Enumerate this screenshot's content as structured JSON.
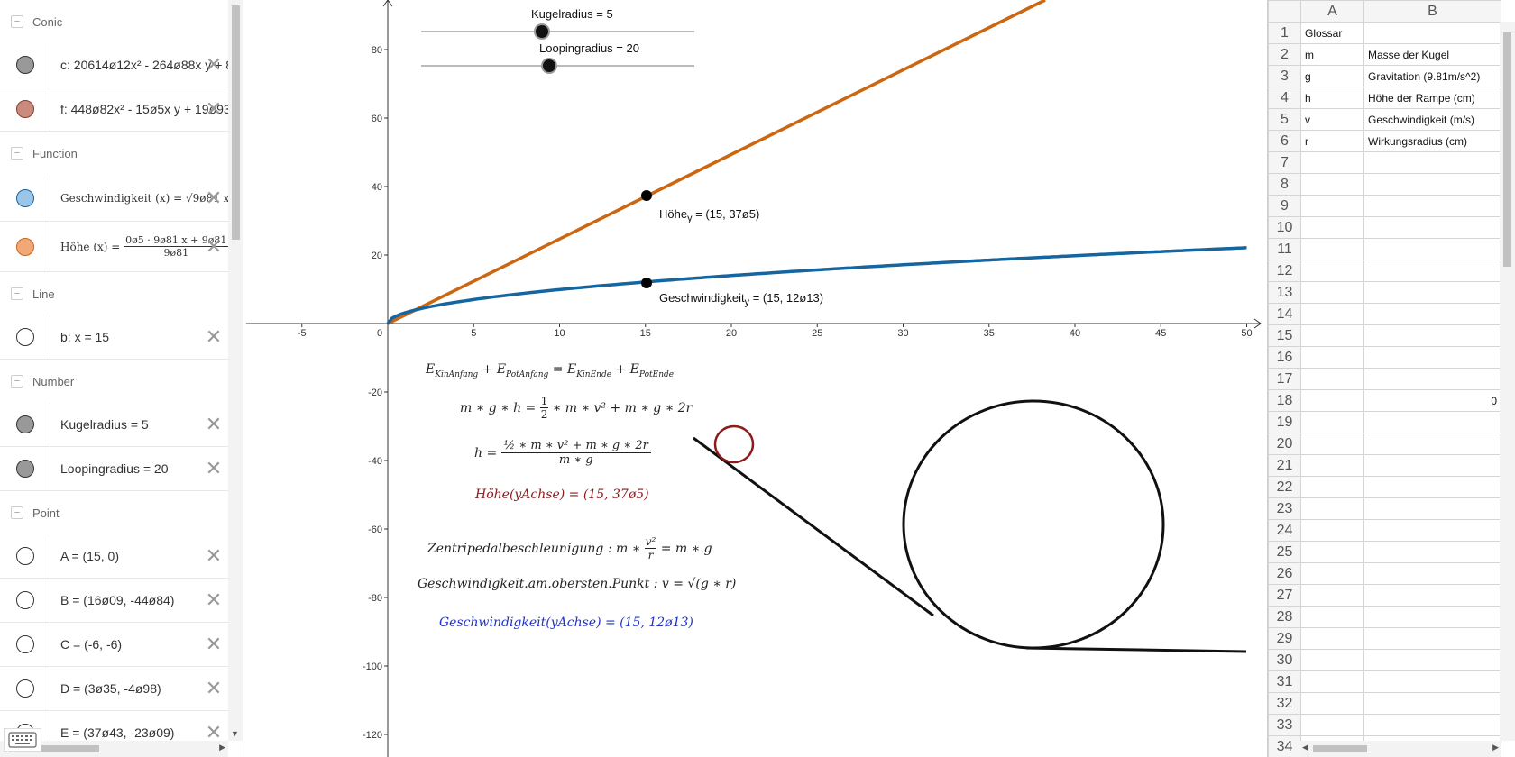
{
  "algebra": {
    "groups": [
      {
        "header": "Conic",
        "items": [
          {
            "expr": "c: 20614ø12x² - 264ø88x y + 8",
            "color": "#999999"
          },
          {
            "expr": "f: 448ø82x² - 15ø5x y + 19ø93",
            "color": "#c98b7e"
          }
        ]
      },
      {
        "header": "Function",
        "items": [
          {
            "expr": "Geschwindigkeit (x) = √9ø81 x",
            "color": "#9cc6e8"
          },
          {
            "expr": "Höhe (x) = (0ø5 · 9ø81 x + 9ø81 …) / 9ø81",
            "color": "#f0a878"
          }
        ]
      },
      {
        "header": "Line",
        "items": [
          {
            "expr": "b: x = 15",
            "color": "#ffffff"
          }
        ]
      },
      {
        "header": "Number",
        "items": [
          {
            "expr": "Kugelradius = 5",
            "color": "#999999"
          },
          {
            "expr": "Loopingradius = 20",
            "color": "#999999"
          }
        ]
      },
      {
        "header": "Point",
        "items": [
          {
            "expr": "A = (15, 0)",
            "color": "#ffffff"
          },
          {
            "expr": "B = (16ø09, -44ø84)",
            "color": "#ffffff"
          },
          {
            "expr": "C = (-6, -6)",
            "color": "#ffffff"
          },
          {
            "expr": "D = (3ø35, -4ø98)",
            "color": "#ffffff"
          },
          {
            "expr": "E = (37ø43, -23ø09)",
            "color": "#ffffff"
          }
        ]
      }
    ],
    "hoehe_numerator": "0ø5 · 9ø81 x + 9ø81",
    "hoehe_denominator": "9ø81"
  },
  "graphics": {
    "sliders": {
      "kugel_label": "Kugelradius = 5",
      "looping_label": "Loopingradius = 20"
    },
    "x_ticks": [
      "-5",
      "0",
      "5",
      "10",
      "15",
      "20",
      "25",
      "30",
      "35",
      "40",
      "45",
      "50"
    ],
    "y_ticks_pos": [
      "80",
      "60",
      "40",
      "20"
    ],
    "y_ticks_neg": [
      "-20",
      "-40",
      "-60",
      "-80",
      "-100",
      "-120"
    ],
    "point_hoehe_label": "Höhe",
    "point_hoehe_sub": "y",
    "point_hoehe_value": " = (15, 37ø5)",
    "point_gesch_label": "Geschwindigkeit",
    "point_gesch_sub": "y",
    "point_gesch_value": " = (15, 12ø13)",
    "colors": {
      "orange": "#cc6611",
      "blue": "#1565a0",
      "dark_red": "#8b1a1a",
      "formula_blue": "#2133c7"
    },
    "formulas": {
      "f1": "E_KinAnfang + E_PotAnfang = E_KinEnde + E_PotEnde",
      "f2": "m ∗ g ∗ h = 1/2 ∗ m ∗ v² + m ∗ g ∗ 2r",
      "f3": "h = (1/2 ∗ m ∗ v² + m ∗ g ∗ 2r) / (m ∗ g)",
      "f4": "Höhe(yAchse) = (15, 37ø5)",
      "f5": "Zentripedalbeschleunigung : m ∗ v²/r = m ∗ g",
      "f6": "Geschwindigkeit.am.obersten.Punkt : v = √(g ∗ r)",
      "f7": "Geschwindigkeit(yAchse) = (15, 12ø13)"
    }
  },
  "spreadsheet": {
    "columns": [
      "A",
      "B"
    ],
    "rows": [
      {
        "n": "1",
        "a": "Glossar",
        "b": ""
      },
      {
        "n": "2",
        "a": "m",
        "b": "Masse der Kugel"
      },
      {
        "n": "3",
        "a": "g",
        "b": "Gravitation (9.81m/s^2)"
      },
      {
        "n": "4",
        "a": "h",
        "b": "Höhe der Rampe (cm)"
      },
      {
        "n": "5",
        "a": "v",
        "b": "Geschwindigkeit (m/s)"
      },
      {
        "n": "6",
        "a": "r",
        "b": "Wirkungsradius (cm)"
      },
      {
        "n": "7",
        "a": "",
        "b": ""
      },
      {
        "n": "8",
        "a": "",
        "b": ""
      },
      {
        "n": "9",
        "a": "",
        "b": ""
      },
      {
        "n": "10",
        "a": "",
        "b": ""
      },
      {
        "n": "11",
        "a": "",
        "b": ""
      },
      {
        "n": "12",
        "a": "",
        "b": ""
      },
      {
        "n": "13",
        "a": "",
        "b": ""
      },
      {
        "n": "14",
        "a": "",
        "b": ""
      },
      {
        "n": "15",
        "a": "",
        "b": ""
      },
      {
        "n": "16",
        "a": "",
        "b": ""
      },
      {
        "n": "17",
        "a": "",
        "b": ""
      },
      {
        "n": "18",
        "a": "",
        "b": "0"
      },
      {
        "n": "19",
        "a": "",
        "b": ""
      },
      {
        "n": "20",
        "a": "",
        "b": ""
      },
      {
        "n": "21",
        "a": "",
        "b": ""
      },
      {
        "n": "22",
        "a": "",
        "b": ""
      },
      {
        "n": "23",
        "a": "",
        "b": ""
      },
      {
        "n": "24",
        "a": "",
        "b": ""
      },
      {
        "n": "25",
        "a": "",
        "b": ""
      },
      {
        "n": "26",
        "a": "",
        "b": ""
      },
      {
        "n": "27",
        "a": "",
        "b": ""
      },
      {
        "n": "28",
        "a": "",
        "b": ""
      },
      {
        "n": "29",
        "a": "",
        "b": ""
      },
      {
        "n": "30",
        "a": "",
        "b": ""
      },
      {
        "n": "31",
        "a": "",
        "b": ""
      },
      {
        "n": "32",
        "a": "",
        "b": ""
      },
      {
        "n": "33",
        "a": "",
        "b": ""
      },
      {
        "n": "34",
        "a": "",
        "b": ""
      }
    ]
  }
}
